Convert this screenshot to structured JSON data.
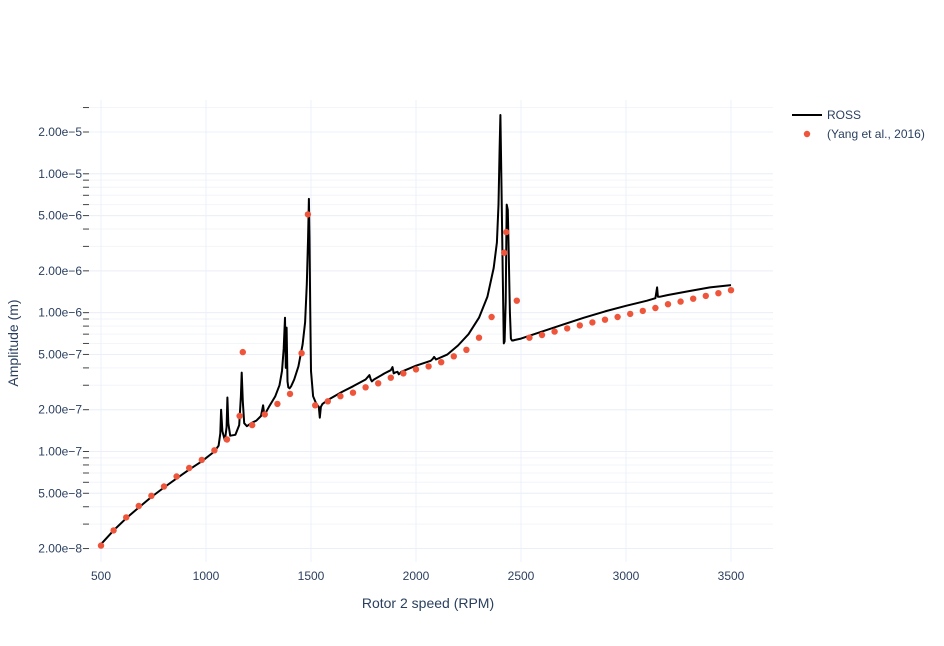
{
  "chart_data": {
    "type": "line",
    "title": "",
    "xlabel": "Rotor 2 speed (RPM)",
    "ylabel": "Amplitude (m)",
    "x_scale": "linear",
    "y_scale": "log",
    "xlim": [
      400,
      3700
    ],
    "ylim": [
      1.6e-08,
      3.4e-05
    ],
    "x_ticks": [
      500,
      1000,
      1500,
      2000,
      2500,
      3000,
      3500
    ],
    "x_tick_labels": [
      "500",
      "1000",
      "1500",
      "2000",
      "2500",
      "3000",
      "3500"
    ],
    "y_ticks": [
      2e-08,
      5e-08,
      1e-07,
      2e-07,
      5e-07,
      1e-06,
      2e-06,
      5e-06,
      1e-05,
      2e-05
    ],
    "y_tick_labels": [
      "2.00e−8",
      "5.00e−8",
      "1.00e−7",
      "2.00e−7",
      "5.00e−7",
      "1.00e−6",
      "2.00e−6",
      "5.00e−6",
      "1.00e−5",
      "2.00e−5"
    ],
    "grid": true,
    "legend_position": "top-right",
    "series": [
      {
        "name": "ROSS",
        "mode": "line",
        "color": "#000000",
        "x": [
          500,
          560,
          620,
          680,
          740,
          800,
          860,
          920,
          980,
          1040,
          1060,
          1068,
          1072,
          1078,
          1090,
          1098,
          1102,
          1106,
          1115,
          1140,
          1158,
          1166,
          1170,
          1175,
          1182,
          1195,
          1215,
          1240,
          1262,
          1272,
          1276,
          1280,
          1300,
          1330,
          1350,
          1362,
          1370,
          1376,
          1380,
          1384,
          1388,
          1392,
          1398,
          1405,
          1420,
          1440,
          1460,
          1472,
          1480,
          1486,
          1490,
          1493,
          1496,
          1500,
          1510,
          1525,
          1537,
          1542,
          1547,
          1555,
          1580,
          1650,
          1700,
          1760,
          1778,
          1785,
          1790,
          1800,
          1850,
          1880,
          1888,
          1894,
          1900,
          1912,
          1918,
          1930,
          2000,
          2070,
          2080,
          2086,
          2095,
          2150,
          2200,
          2250,
          2300,
          2340,
          2370,
          2385,
          2393,
          2398,
          2402,
          2407,
          2413,
          2418,
          2422,
          2427,
          2432,
          2437,
          2442,
          2447,
          2452,
          2457,
          2462,
          2470,
          2500,
          2600,
          2700,
          2800,
          2900,
          3000,
          3100,
          3140,
          3148,
          3152,
          3156,
          3160,
          3200,
          3300,
          3400,
          3500
        ],
        "y": [
          2.15e-08,
          2.7e-08,
          3.3e-08,
          3.95e-08,
          4.7e-08,
          5.5e-08,
          6.4e-08,
          7.4e-08,
          8.5e-08,
          1e-07,
          1.1e-07,
          1.35e-07,
          2e-07,
          1.4e-07,
          1.2e-07,
          1.5e-07,
          2.45e-07,
          1.6e-07,
          1.3e-07,
          1.32e-07,
          1.55e-07,
          2.5e-07,
          3.7e-07,
          2.3e-07,
          1.6e-07,
          1.52e-07,
          1.6e-07,
          1.67e-07,
          1.8e-07,
          2.15e-07,
          1.9e-07,
          1.85e-07,
          2.1e-07,
          2.5e-07,
          3e-07,
          3.8e-07,
          5.5e-07,
          9.2e-07,
          4e-07,
          7.8e-07,
          3.2e-07,
          2.9e-07,
          2.85e-07,
          2.95e-07,
          3.3e-07,
          4.1e-07,
          5.9e-07,
          8.5e-07,
          1.6e-06,
          3.5e-06,
          6.6e-06,
          3.5e-06,
          1.1e-06,
          3.8e-07,
          2.5e-07,
          2.2e-07,
          2.1e-07,
          1.75e-07,
          2.1e-07,
          2.2e-07,
          2.35e-07,
          2.7e-07,
          2.95e-07,
          3.3e-07,
          3.55e-07,
          3.3e-07,
          3.2e-07,
          3.3e-07,
          3.65e-07,
          3.85e-07,
          4.05e-07,
          3.65e-07,
          3.7e-07,
          3.75e-07,
          3.6e-07,
          3.75e-07,
          4.15e-07,
          4.5e-07,
          4.65e-07,
          4.8e-07,
          4.6e-07,
          5e-07,
          5.8e-07,
          7e-07,
          9.2e-07,
          1.3e-06,
          2.1e-06,
          3.2e-06,
          6e-06,
          1.5e-05,
          2.65e-05,
          8e-06,
          2e-06,
          6e-07,
          6.2e-07,
          1.2e-06,
          6e-06,
          5.5e-06,
          2.5e-06,
          1e-06,
          6.5e-07,
          6.3e-07,
          6.3e-07,
          6.35e-07,
          6.5e-07,
          7.3e-07,
          8.2e-07,
          9.2e-07,
          1.02e-06,
          1.12e-06,
          1.22e-06,
          1.27e-06,
          1.52e-06,
          1.3e-06,
          1.3e-06,
          1.3e-06,
          1.34e-06,
          1.43e-06,
          1.52e-06,
          1.58e-06
        ]
      },
      {
        "name": "(Yang et al., 2016)",
        "mode": "markers",
        "color": "#EF553B",
        "x": [
          500,
          560,
          620,
          680,
          740,
          800,
          860,
          920,
          980,
          1040,
          1100,
          1160,
          1175,
          1220,
          1280,
          1340,
          1400,
          1455,
          1485,
          1520,
          1580,
          1640,
          1700,
          1760,
          1820,
          1880,
          1940,
          2000,
          2060,
          2120,
          2180,
          2240,
          2300,
          2360,
          2420,
          2430,
          2480,
          2540,
          2600,
          2660,
          2720,
          2780,
          2840,
          2900,
          2960,
          3020,
          3080,
          3140,
          3200,
          3260,
          3320,
          3380,
          3440,
          3500
        ],
        "y": [
          2.1e-08,
          2.7e-08,
          3.35e-08,
          4.05e-08,
          4.8e-08,
          5.6e-08,
          6.6e-08,
          7.6e-08,
          8.7e-08,
          1.02e-07,
          1.22e-07,
          1.8e-07,
          5.2e-07,
          1.55e-07,
          1.85e-07,
          2.2e-07,
          2.6e-07,
          5.1e-07,
          5.1e-06,
          2.15e-07,
          2.3e-07,
          2.5e-07,
          2.65e-07,
          2.9e-07,
          3.1e-07,
          3.4e-07,
          3.65e-07,
          3.9e-07,
          4.1e-07,
          4.4e-07,
          4.85e-07,
          5.4e-07,
          6.6e-07,
          9.3e-07,
          2.7e-06,
          3.8e-06,
          1.22e-06,
          6.6e-07,
          6.9e-07,
          7.3e-07,
          7.7e-07,
          8.1e-07,
          8.5e-07,
          8.9e-07,
          9.3e-07,
          9.8e-07,
          1.03e-06,
          1.08e-06,
          1.15e-06,
          1.2e-06,
          1.26e-06,
          1.32e-06,
          1.38e-06,
          1.45e-06
        ]
      }
    ]
  }
}
